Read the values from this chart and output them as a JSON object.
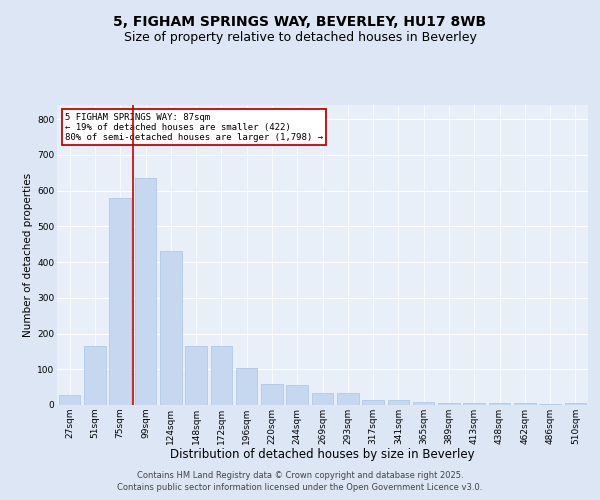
{
  "title_line1": "5, FIGHAM SPRINGS WAY, BEVERLEY, HU17 8WB",
  "title_line2": "Size of property relative to detached houses in Beverley",
  "xlabel": "Distribution of detached houses by size in Beverley",
  "ylabel": "Number of detached properties",
  "categories": [
    "27sqm",
    "51sqm",
    "75sqm",
    "99sqm",
    "124sqm",
    "148sqm",
    "172sqm",
    "196sqm",
    "220sqm",
    "244sqm",
    "269sqm",
    "293sqm",
    "317sqm",
    "341sqm",
    "365sqm",
    "389sqm",
    "413sqm",
    "438sqm",
    "462sqm",
    "486sqm",
    "510sqm"
  ],
  "values": [
    27,
    165,
    580,
    635,
    430,
    165,
    165,
    105,
    60,
    55,
    35,
    35,
    15,
    15,
    8,
    5,
    5,
    5,
    5,
    3,
    5
  ],
  "bar_color": "#c5d8f0",
  "bar_edge_color": "#a8c4e0",
  "vline_color": "#cc0000",
  "vline_x_index": 2.5,
  "annotation_text": "5 FIGHAM SPRINGS WAY: 87sqm\n← 19% of detached houses are smaller (422)\n80% of semi-detached houses are larger (1,798) →",
  "annotation_box_color": "#cc0000",
  "ylim": [
    0,
    840
  ],
  "yticks": [
    0,
    100,
    200,
    300,
    400,
    500,
    600,
    700,
    800
  ],
  "background_color": "#e8eff9",
  "grid_color": "#ffffff",
  "fig_background": "#dce6f5",
  "footer_line1": "Contains HM Land Registry data © Crown copyright and database right 2025.",
  "footer_line2": "Contains public sector information licensed under the Open Government Licence v3.0.",
  "title_fontsize": 10,
  "subtitle_fontsize": 9,
  "tick_fontsize": 6.5,
  "xlabel_fontsize": 8.5,
  "ylabel_fontsize": 7.5,
  "annotation_fontsize": 6.5,
  "footer_fontsize": 6
}
